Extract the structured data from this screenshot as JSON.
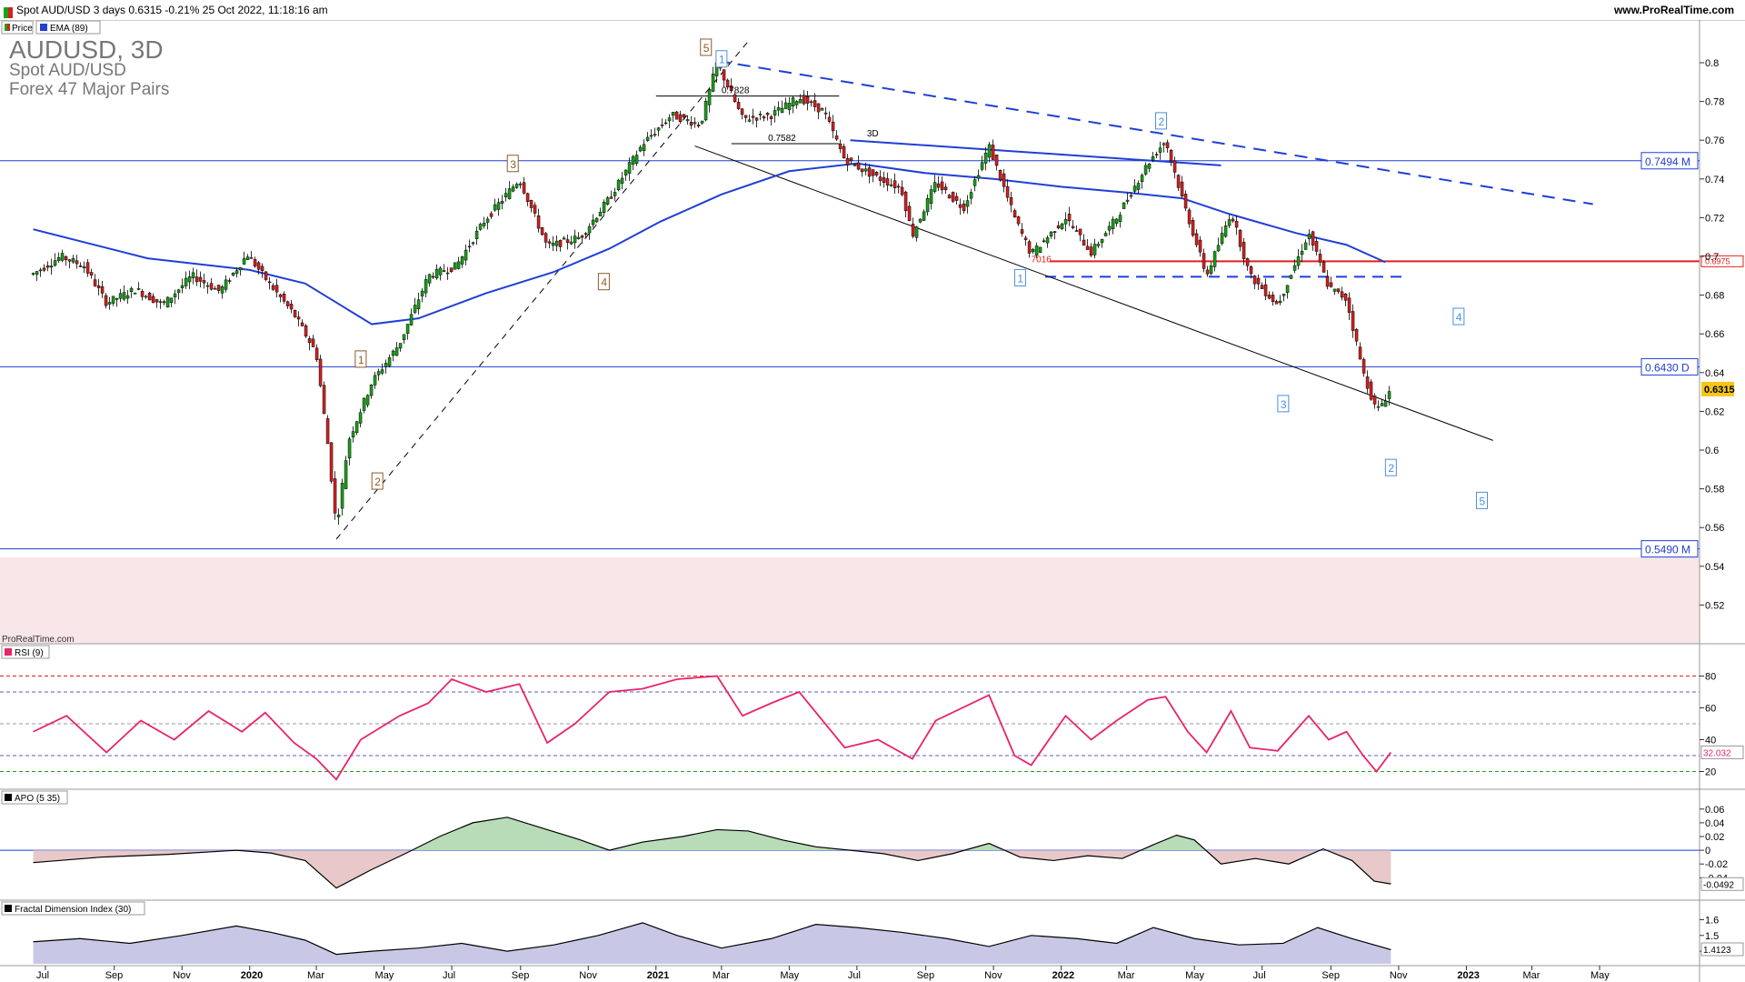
{
  "header": {
    "title": "Spot AUD/USD 3 days 0.6315 -0.21% 25 Oct 2022, 11:18:16 am",
    "site": "www.ProRealTime.com"
  },
  "legend": {
    "price_label": "Price",
    "ema_label": "EMA (89)",
    "big_symbol": "AUDUSD, 3D",
    "instrument": "Spot AUD/USD",
    "group": "Forex 47 Major Pairs",
    "watermark": "ProRealTime.com"
  },
  "colors": {
    "ema": "#1f3fd6",
    "level_line": "#1f3fd6",
    "red_line": "#e02020",
    "rsi": "#e8246c",
    "apo_green": "#b7dcb7",
    "apo_red": "#e8c8c8",
    "fdi_fill": "#c8c8e6",
    "bull": "#19a319",
    "bear": "#d62020"
  },
  "chart_data": [
    {
      "type": "candlestick",
      "title": "AUDUSD, 3D",
      "x_ticks": [
        "Jul",
        "Sep",
        "Nov",
        "2020",
        "Mar",
        "May",
        "Jul",
        "Sep",
        "Nov",
        "2021",
        "Mar",
        "May",
        "Jul",
        "Sep",
        "Nov",
        "2022",
        "Mar",
        "May",
        "Jul",
        "Sep",
        "Nov",
        "2023",
        "Mar",
        "May"
      ],
      "ylim": [
        0.505,
        0.825
      ],
      "y_ticks": [
        "0.8",
        "0.78",
        "0.76",
        "0.74",
        "0.72",
        "0.7",
        "0.68",
        "0.66",
        "0.64",
        "0.62",
        "0.6",
        "0.58",
        "0.56",
        "0.54",
        "0.52"
      ],
      "last_price": "0.6315",
      "price_path": [
        [
          "2019-06-20",
          0.691
        ],
        [
          "2019-07-15",
          0.7
        ],
        [
          "2019-08-05",
          0.695
        ],
        [
          "2019-08-25",
          0.676
        ],
        [
          "2019-09-20",
          0.683
        ],
        [
          "2019-10-15",
          0.675
        ],
        [
          "2019-11-10",
          0.69
        ],
        [
          "2019-12-05",
          0.682
        ],
        [
          "2019-12-30",
          0.701
        ],
        [
          "2020-01-20",
          0.685
        ],
        [
          "2020-02-10",
          0.67
        ],
        [
          "2020-03-01",
          0.65
        ],
        [
          "2020-03-12",
          0.6
        ],
        [
          "2020-03-19",
          0.56
        ],
        [
          "2020-03-30",
          0.605
        ],
        [
          "2020-04-20",
          0.635
        ],
        [
          "2020-05-15",
          0.655
        ],
        [
          "2020-06-10",
          0.69
        ],
        [
          "2020-07-05",
          0.695
        ],
        [
          "2020-07-30",
          0.718
        ],
        [
          "2020-08-31",
          0.74
        ],
        [
          "2020-09-25",
          0.705
        ],
        [
          "2020-10-25",
          0.71
        ],
        [
          "2020-11-20",
          0.73
        ],
        [
          "2020-12-20",
          0.758
        ],
        [
          "2021-01-15",
          0.773
        ],
        [
          "2021-02-10",
          0.768
        ],
        [
          "2021-02-25",
          0.8
        ],
        [
          "2021-03-20",
          0.771
        ],
        [
          "2021-04-15",
          0.773
        ],
        [
          "2021-05-10",
          0.782
        ],
        [
          "2021-06-01",
          0.775
        ],
        [
          "2021-06-20",
          0.75
        ],
        [
          "2021-07-15",
          0.742
        ],
        [
          "2021-08-10",
          0.735
        ],
        [
          "2021-08-20",
          0.711
        ],
        [
          "2021-09-10",
          0.738
        ],
        [
          "2021-10-05",
          0.725
        ],
        [
          "2021-10-28",
          0.757
        ],
        [
          "2021-11-20",
          0.72
        ],
        [
          "2021-12-05",
          0.701
        ],
        [
          "2022-01-05",
          0.72
        ],
        [
          "2022-01-28",
          0.702
        ],
        [
          "2022-02-20",
          0.72
        ],
        [
          "2022-03-20",
          0.748
        ],
        [
          "2022-04-05",
          0.76
        ],
        [
          "2022-04-20",
          0.73
        ],
        [
          "2022-05-12",
          0.69
        ],
        [
          "2022-06-03",
          0.723
        ],
        [
          "2022-06-20",
          0.69
        ],
        [
          "2022-07-15",
          0.675
        ],
        [
          "2022-08-12",
          0.712
        ],
        [
          "2022-08-30",
          0.684
        ],
        [
          "2022-09-15",
          0.678
        ],
        [
          "2022-09-30",
          0.64
        ],
        [
          "2022-10-12",
          0.62
        ],
        [
          "2022-10-18",
          0.625
        ],
        [
          "2022-10-25",
          0.6315
        ]
      ],
      "ema_path": [
        [
          "2019-06-20",
          0.714
        ],
        [
          "2019-10-01",
          0.699
        ],
        [
          "2020-01-01",
          0.693
        ],
        [
          "2020-02-20",
          0.686
        ],
        [
          "2020-04-20",
          0.665
        ],
        [
          "2020-06-01",
          0.668
        ],
        [
          "2020-08-01",
          0.681
        ],
        [
          "2020-10-01",
          0.692
        ],
        [
          "2020-11-20",
          0.704
        ],
        [
          "2021-01-05",
          0.718
        ],
        [
          "2021-03-01",
          0.732
        ],
        [
          "2021-05-01",
          0.744
        ],
        [
          "2021-07-01",
          0.748
        ],
        [
          "2021-09-01",
          0.743
        ],
        [
          "2021-11-01",
          0.74
        ],
        [
          "2022-01-01",
          0.736
        ],
        [
          "2022-03-01",
          0.733
        ],
        [
          "2022-04-20",
          0.73
        ],
        [
          "2022-06-01",
          0.722
        ],
        [
          "2022-08-01",
          0.712
        ],
        [
          "2022-09-15",
          0.706
        ],
        [
          "2022-10-20",
          0.697
        ]
      ],
      "levels": [
        {
          "label": "0.7494 M",
          "value": 0.7494,
          "color": "#1f3fd6"
        },
        {
          "label": "0.6430 D",
          "value": 0.643,
          "color": "#1f3fd6"
        },
        {
          "label": "0.5490 M",
          "value": 0.549,
          "color": "#1f3fd6"
        },
        {
          "label": "0.6975",
          "value": 0.6975,
          "color": "#e02020"
        }
      ],
      "annotations": {
        "price_labels": [
          "0.7828",
          "0.7582",
          "3D",
          "7016"
        ],
        "brown_waves": [
          {
            "label": "1",
            "date": "2020-04-10",
            "price": 0.647
          },
          {
            "label": "2",
            "date": "2020-04-25",
            "price": 0.584
          },
          {
            "label": "3",
            "date": "2020-08-25",
            "price": 0.748
          },
          {
            "label": "4",
            "date": "2020-11-15",
            "price": 0.687
          },
          {
            "label": "5",
            "date": "2021-02-15",
            "price": 0.808
          }
        ],
        "blue_waves": [
          {
            "label": "1",
            "date": "2021-03-01",
            "price": 0.802
          },
          {
            "label": "2",
            "date": "2022-04-01",
            "price": 0.77
          },
          {
            "label": "1",
            "date": "2021-11-25",
            "price": 0.689
          },
          {
            "label": "3",
            "date": "2022-07-20",
            "price": 0.624
          },
          {
            "label": "4",
            "date": "2022-12-25",
            "price": 0.669
          },
          {
            "label": "2",
            "date": "2022-10-25",
            "price": 0.591
          },
          {
            "label": "5",
            "date": "2023-01-15",
            "price": 0.574
          }
        ]
      }
    },
    {
      "type": "line",
      "title": "RSI (9)",
      "ylim": [
        10,
        90
      ],
      "y_ticks": [
        "80",
        "60",
        "40",
        "20"
      ],
      "last_value": "32.032",
      "guides": [
        80,
        70,
        50,
        30,
        20
      ],
      "series": [
        {
          "points": [
            [
              "2019-06-20",
              45
            ],
            [
              "2019-07-20",
              55
            ],
            [
              "2019-08-25",
              32
            ],
            [
              "2019-09-25",
              52
            ],
            [
              "2019-10-25",
              40
            ],
            [
              "2019-11-25",
              58
            ],
            [
              "2019-12-25",
              45
            ],
            [
              "2020-01-15",
              57
            ],
            [
              "2020-02-10",
              38
            ],
            [
              "2020-03-01",
              28
            ],
            [
              "2020-03-19",
              15
            ],
            [
              "2020-04-10",
              40
            ],
            [
              "2020-05-15",
              55
            ],
            [
              "2020-06-10",
              63
            ],
            [
              "2020-07-01",
              78
            ],
            [
              "2020-08-01",
              70
            ],
            [
              "2020-08-31",
              75
            ],
            [
              "2020-09-25",
              38
            ],
            [
              "2020-10-20",
              50
            ],
            [
              "2020-11-20",
              70
            ],
            [
              "2020-12-20",
              72
            ],
            [
              "2021-01-20",
              78
            ],
            [
              "2021-02-25",
              80
            ],
            [
              "2021-03-20",
              55
            ],
            [
              "2021-04-15",
              63
            ],
            [
              "2021-05-10",
              70
            ],
            [
              "2021-06-20",
              35
            ],
            [
              "2021-07-20",
              40
            ],
            [
              "2021-08-20",
              28
            ],
            [
              "2021-09-10",
              52
            ],
            [
              "2021-10-28",
              68
            ],
            [
              "2021-11-20",
              30
            ],
            [
              "2021-12-05",
              24
            ],
            [
              "2022-01-05",
              55
            ],
            [
              "2022-01-28",
              40
            ],
            [
              "2022-02-20",
              52
            ],
            [
              "2022-03-20",
              65
            ],
            [
              "2022-04-05",
              67
            ],
            [
              "2022-04-25",
              45
            ],
            [
              "2022-05-12",
              32
            ],
            [
              "2022-06-03",
              58
            ],
            [
              "2022-06-20",
              35
            ],
            [
              "2022-07-15",
              33
            ],
            [
              "2022-08-12",
              55
            ],
            [
              "2022-08-30",
              40
            ],
            [
              "2022-09-15",
              45
            ],
            [
              "2022-09-30",
              30
            ],
            [
              "2022-10-12",
              20
            ],
            [
              "2022-10-25",
              32
            ]
          ]
        }
      ]
    },
    {
      "type": "area",
      "title": "APO (5 35)",
      "ylim": [
        -0.07,
        0.065
      ],
      "y_ticks": [
        "0.06",
        "0.04",
        "0.02",
        "0",
        "-0.02",
        "-0.04"
      ],
      "last_value": "-0.0492",
      "series": [
        {
          "points": [
            [
              "2019-06-20",
              -0.018
            ],
            [
              "2019-08-20",
              -0.01
            ],
            [
              "2019-10-20",
              -0.006
            ],
            [
              "2019-12-20",
              0.0
            ],
            [
              "2020-01-20",
              -0.004
            ],
            [
              "2020-02-20",
              -0.015
            ],
            [
              "2020-03-19",
              -0.055
            ],
            [
              "2020-04-20",
              -0.028
            ],
            [
              "2020-05-20",
              -0.005
            ],
            [
              "2020-06-20",
              0.02
            ],
            [
              "2020-07-20",
              0.04
            ],
            [
              "2020-08-20",
              0.048
            ],
            [
              "2020-09-25",
              0.03
            ],
            [
              "2020-10-25",
              0.015
            ],
            [
              "2020-11-20",
              0.0
            ],
            [
              "2020-12-20",
              0.012
            ],
            [
              "2021-01-25",
              0.02
            ],
            [
              "2021-02-25",
              0.03
            ],
            [
              "2021-03-25",
              0.028
            ],
            [
              "2021-04-25",
              0.015
            ],
            [
              "2021-05-25",
              0.005
            ],
            [
              "2021-06-25",
              0.0
            ],
            [
              "2021-07-25",
              -0.005
            ],
            [
              "2021-08-25",
              -0.015
            ],
            [
              "2021-09-25",
              -0.005
            ],
            [
              "2021-10-28",
              0.01
            ],
            [
              "2021-11-25",
              -0.01
            ],
            [
              "2021-12-25",
              -0.015
            ],
            [
              "2022-01-25",
              -0.008
            ],
            [
              "2022-02-25",
              -0.012
            ],
            [
              "2022-03-25",
              0.008
            ],
            [
              "2022-04-15",
              0.022
            ],
            [
              "2022-05-01",
              0.015
            ],
            [
              "2022-05-25",
              -0.02
            ],
            [
              "2022-06-25",
              -0.012
            ],
            [
              "2022-07-25",
              -0.02
            ],
            [
              "2022-08-25",
              0.002
            ],
            [
              "2022-09-20",
              -0.015
            ],
            [
              "2022-10-10",
              -0.045
            ],
            [
              "2022-10-25",
              -0.049
            ]
          ]
        }
      ]
    },
    {
      "type": "area",
      "title": "Fractal Dimension Index (30)",
      "ylim": [
        1.32,
        1.62
      ],
      "y_ticks": [
        "1.6",
        "1.5",
        "1.4"
      ],
      "last_value": "1.4123",
      "series": [
        {
          "points": [
            [
              "2019-06-20",
              1.46
            ],
            [
              "2019-08-01",
              1.48
            ],
            [
              "2019-09-15",
              1.45
            ],
            [
              "2019-11-01",
              1.5
            ],
            [
              "2019-12-20",
              1.56
            ],
            [
              "2020-01-20",
              1.52
            ],
            [
              "2020-02-20",
              1.47
            ],
            [
              "2020-03-19",
              1.38
            ],
            [
              "2020-04-20",
              1.4
            ],
            [
              "2020-06-01",
              1.42
            ],
            [
              "2020-07-10",
              1.45
            ],
            [
              "2020-08-20",
              1.4
            ],
            [
              "2020-10-01",
              1.44
            ],
            [
              "2020-11-10",
              1.5
            ],
            [
              "2020-12-20",
              1.58
            ],
            [
              "2021-01-20",
              1.5
            ],
            [
              "2021-03-01",
              1.42
            ],
            [
              "2021-04-15",
              1.48
            ],
            [
              "2021-05-25",
              1.57
            ],
            [
              "2021-07-01",
              1.55
            ],
            [
              "2021-08-10",
              1.52
            ],
            [
              "2021-09-20",
              1.48
            ],
            [
              "2021-10-28",
              1.43
            ],
            [
              "2021-12-05",
              1.5
            ],
            [
              "2022-01-15",
              1.48
            ],
            [
              "2022-02-20",
              1.45
            ],
            [
              "2022-03-25",
              1.55
            ],
            [
              "2022-05-01",
              1.48
            ],
            [
              "2022-06-10",
              1.44
            ],
            [
              "2022-07-20",
              1.45
            ],
            [
              "2022-08-20",
              1.55
            ],
            [
              "2022-09-20",
              1.48
            ],
            [
              "2022-10-25",
              1.41
            ]
          ]
        }
      ]
    }
  ]
}
